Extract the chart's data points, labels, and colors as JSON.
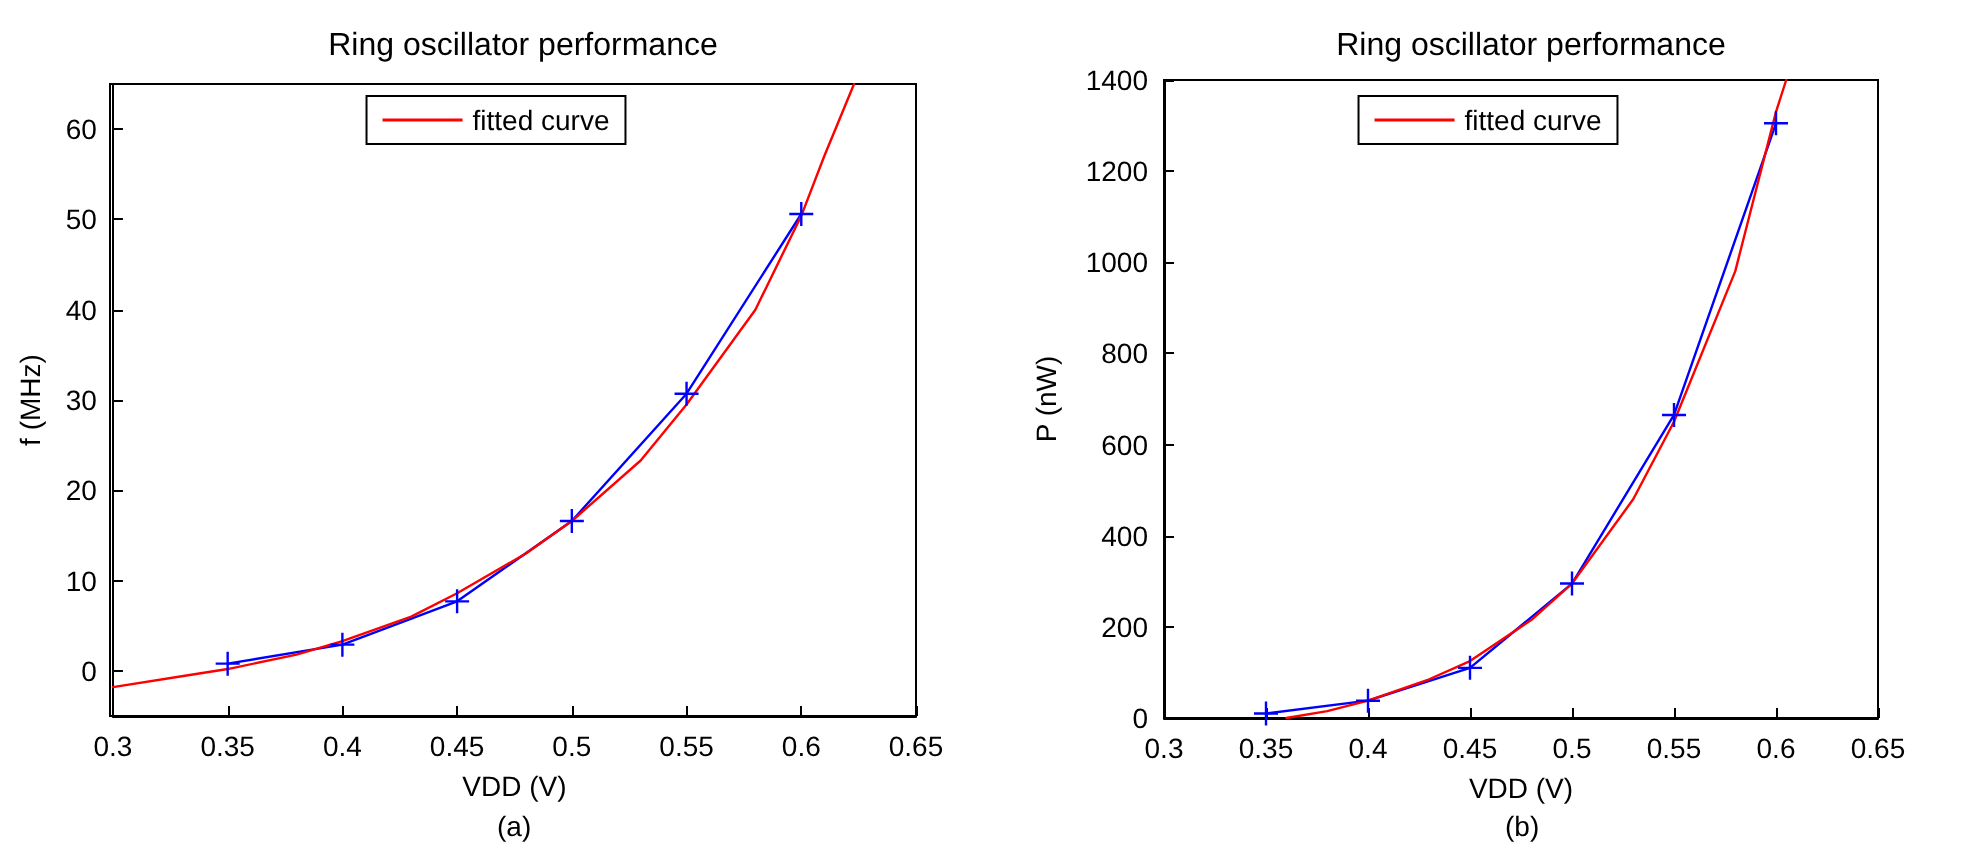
{
  "chart_data": [
    {
      "type": "line",
      "title": "Ring oscillator performance",
      "xlabel": "VDD (V)",
      "ylabel": "f (MHz)",
      "annotations": [
        "(a)"
      ],
      "xlim": [
        0.3,
        0.65
      ],
      "xticks": [
        0.3,
        0.35,
        0.4,
        0.45,
        0.5,
        0.55,
        0.6,
        0.65
      ],
      "ylim": [
        -5,
        65
      ],
      "yticks": [
        0,
        10,
        20,
        30,
        40,
        50,
        60
      ],
      "grid": false,
      "legend": "top",
      "series": [
        {
          "color": "#0000ff",
          "marker": "cross",
          "x": [
            0.35,
            0.4,
            0.45,
            0.5,
            0.55,
            0.6
          ],
          "values": [
            0.8,
            2.9,
            7.7,
            16.6,
            30.7,
            50.6
          ]
        },
        {
          "name": "fitted curve",
          "color": "#ff0000",
          "marker": "none",
          "x": [
            0.3,
            0.33,
            0.35,
            0.38,
            0.4,
            0.43,
            0.45,
            0.48,
            0.5,
            0.53,
            0.55,
            0.58,
            0.6,
            0.61,
            0.623
          ],
          "values": [
            -1.8,
            -0.6,
            0.2,
            1.8,
            3.3,
            6.0,
            8.6,
            13.0,
            16.6,
            23.3,
            29.5,
            40.0,
            50.4,
            57.0,
            65
          ]
        }
      ]
    },
    {
      "type": "line",
      "title": "Ring oscillator performance",
      "xlabel": "VDD (V)",
      "ylabel": "P (nW)",
      "annotations": [
        "(b)"
      ],
      "xlim": [
        0.3,
        0.65
      ],
      "xticks": [
        0.3,
        0.35,
        0.4,
        0.45,
        0.5,
        0.55,
        0.6,
        0.65
      ],
      "ylim": [
        0,
        1400
      ],
      "yticks": [
        0,
        200,
        400,
        600,
        800,
        1000,
        1200,
        1400
      ],
      "grid": false,
      "legend": "top",
      "series": [
        {
          "color": "#0000ff",
          "marker": "cross",
          "x": [
            0.35,
            0.4,
            0.45,
            0.5,
            0.55,
            0.6
          ],
          "values": [
            10,
            38,
            110,
            295,
            665,
            1305
          ]
        },
        {
          "name": "fitted curve",
          "color": "#ff0000",
          "marker": "none",
          "x": [
            0.36,
            0.38,
            0.4,
            0.43,
            0.45,
            0.48,
            0.5,
            0.53,
            0.55,
            0.58,
            0.6,
            0.605
          ],
          "values": [
            0,
            15,
            38,
            85,
            125,
            215,
            295,
            480,
            650,
            980,
            1330,
            1400
          ]
        }
      ]
    }
  ]
}
